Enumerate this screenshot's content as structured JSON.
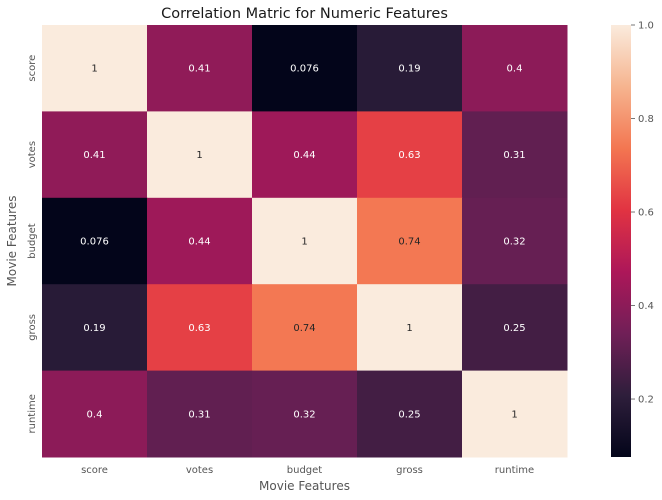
{
  "chart_data": {
    "type": "heatmap",
    "title": "Correlation Matric for Numeric Features",
    "xlabel": "Movie Features",
    "ylabel": "Movie Features",
    "x_categories": [
      "score",
      "votes",
      "budget",
      "gross",
      "runtime"
    ],
    "y_categories": [
      "score",
      "votes",
      "budget",
      "gross",
      "runtime"
    ],
    "values": [
      [
        1,
        0.41,
        0.076,
        0.19,
        0.4
      ],
      [
        0.41,
        1,
        0.44,
        0.63,
        0.31
      ],
      [
        0.076,
        0.44,
        1,
        0.74,
        0.32
      ],
      [
        0.19,
        0.63,
        0.74,
        1,
        0.25
      ],
      [
        0.4,
        0.31,
        0.32,
        0.25,
        1
      ]
    ],
    "value_labels": [
      [
        "1",
        "0.41",
        "0.076",
        "0.19",
        "0.4"
      ],
      [
        "0.41",
        "1",
        "0.44",
        "0.63",
        "0.31"
      ],
      [
        "0.076",
        "0.44",
        "1",
        "0.74",
        "0.32"
      ],
      [
        "0.19",
        "0.63",
        "0.74",
        "1",
        "0.25"
      ],
      [
        "0.4",
        "0.31",
        "0.32",
        "0.25",
        "1"
      ]
    ],
    "colorbar": {
      "vmin": 0.076,
      "vmax": 1.0,
      "ticks": [
        0.2,
        0.4,
        0.6,
        0.8,
        1.0
      ],
      "tick_labels": [
        "0.2",
        "0.4",
        "0.6",
        "0.8",
        "1.0"
      ],
      "colormap": "rocket",
      "colors": [
        "#03051a",
        "#2e1e3b",
        "#701f57",
        "#ad1759",
        "#e13342",
        "#f37651",
        "#f6b48f",
        "#faebdd"
      ]
    },
    "legend": "colorbar-right",
    "grid": false
  }
}
